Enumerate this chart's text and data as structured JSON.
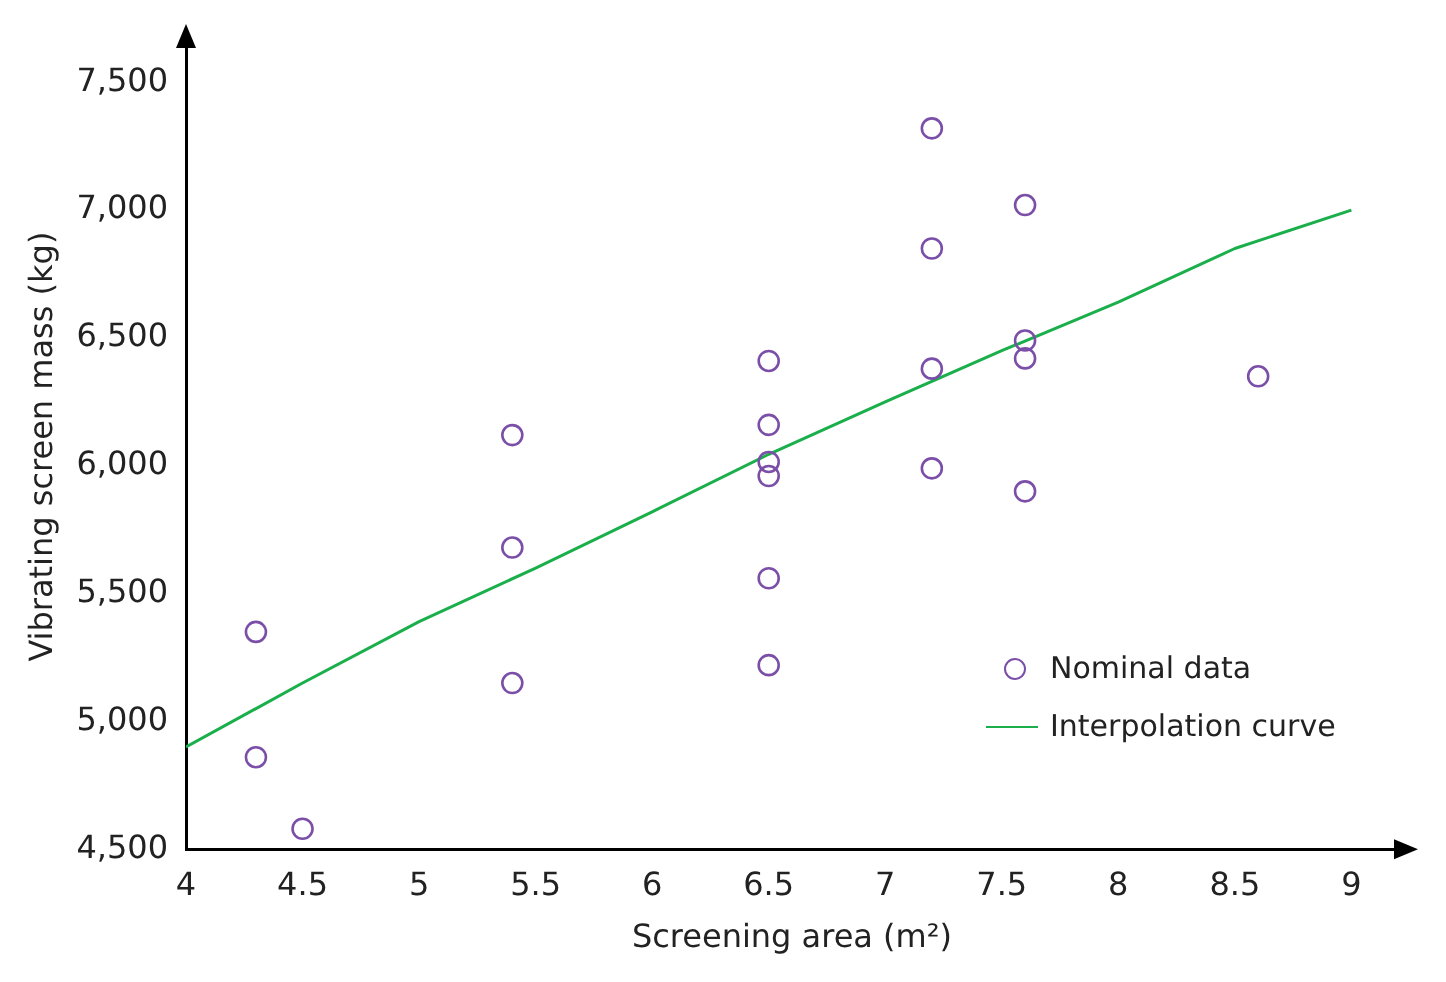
{
  "chart_data": {
    "type": "scatter",
    "xlabel": "Screening area (m²)",
    "ylabel": "Vibrating screen mass (kg)",
    "xlim": [
      4,
      9.2
    ],
    "xticks": [
      4,
      4.5,
      5,
      5.5,
      6,
      6.5,
      7,
      7.5,
      8,
      8.5,
      9
    ],
    "ylim": [
      4500,
      7650
    ],
    "yticks": [
      {
        "value": 4500,
        "label": "4,500"
      },
      {
        "value": 5000,
        "label": "5,000"
      },
      {
        "value": 5500,
        "label": "5,500"
      },
      {
        "value": 6000,
        "label": "6,000"
      },
      {
        "value": 6500,
        "label": "6,500"
      },
      {
        "value": 7000,
        "label": "7,000"
      },
      {
        "value": 7500,
        "label": "7,500"
      }
    ],
    "grid": false,
    "legend": "bottom right",
    "series": [
      {
        "name": "Nominal data",
        "marker": "circle",
        "color": "#7b4fa8",
        "x": [
          4.3,
          4.3,
          4.5,
          5.4,
          5.4,
          5.4,
          6.5,
          6.5,
          6.5,
          6.5,
          6.5,
          6.5,
          7.2,
          7.2,
          7.2,
          7.2,
          7.6,
          7.6,
          7.6,
          7.6,
          8.6
        ],
        "values": [
          5350,
          4860,
          4580,
          6120,
          5680,
          5150,
          6410,
          6160,
          6015,
          5960,
          5560,
          5220,
          7320,
          6850,
          6380,
          5990,
          7020,
          6490,
          6420,
          5900,
          6350
        ]
      },
      {
        "name": "Interpolation curve",
        "type": "line",
        "marker": "none",
        "line_style": "solid",
        "color": "#1aaf4b",
        "x": [
          4,
          4.5,
          5,
          5.5,
          6,
          6.5,
          7,
          7.5,
          8,
          8.5,
          9
        ],
        "values": [
          4900,
          5150,
          5390,
          5600,
          5820,
          6045,
          6250,
          6450,
          6640,
          6850,
          7000
        ]
      }
    ]
  }
}
